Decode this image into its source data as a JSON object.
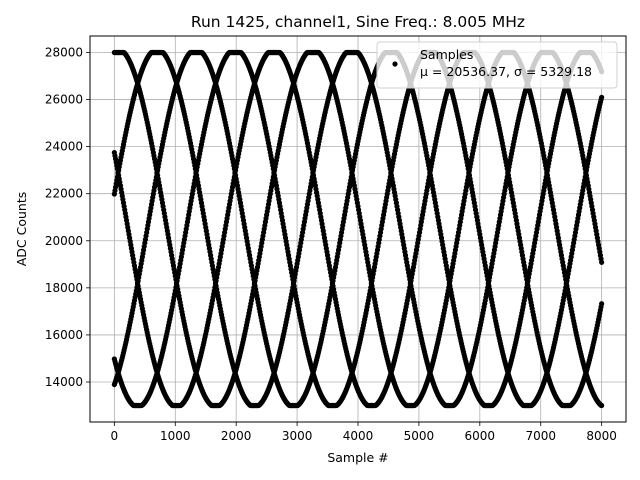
{
  "chart_data": {
    "type": "scatter",
    "title": "Run 1425, channel1, Sine Freq.: 8.005 MHz",
    "xlabel": "Sample #",
    "ylabel": "ADC Counts",
    "xlim": [
      -400,
      8400
    ],
    "ylim": [
      12300,
      28700
    ],
    "x_ticks": [
      0,
      1000,
      2000,
      3000,
      4000,
      5000,
      6000,
      7000,
      8000
    ],
    "y_ticks": [
      14000,
      16000,
      18000,
      20000,
      22000,
      24000,
      26000,
      28000
    ],
    "grid": true,
    "legend_position": "top-right",
    "marker_color": "#000000",
    "series": [
      {
        "name": "Samples",
        "stats_label": "μ = 20536.37, σ = 5329.18",
        "model": {
          "form": "mean + amplitude * sin(2*pi*x/period + phase), clipped to [min, max]",
          "mean": 20536.37,
          "amplitude": 7600,
          "period": 3200,
          "phases_deg": [
            11,
            83,
            155,
            227,
            299
          ],
          "clip_min": 13000,
          "clip_max": 28000,
          "x_start": 0,
          "x_end": 8000
        }
      }
    ]
  }
}
